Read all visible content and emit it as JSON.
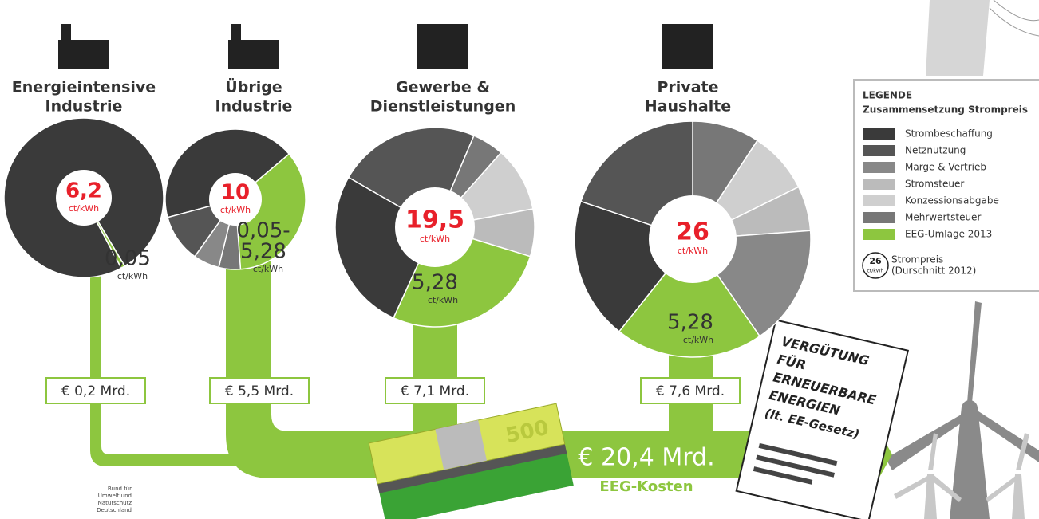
{
  "groups": [
    {
      "title_lines": [
        "Energieintensive",
        "Industrie"
      ],
      "price": "6,2",
      "price_unit": "ct/kWh",
      "eeg_lines": [
        "0,05"
      ],
      "eeg_unit": "ct/kWh",
      "cost": "€ 0,2 Mrd.",
      "segments": [
        {
          "color": "#3a3a3a",
          "value": 6.15
        },
        {
          "color": "#8dc63f",
          "value": 0.05
        }
      ]
    },
    {
      "title_lines": [
        "Übrige",
        "Industrie"
      ],
      "price": "10",
      "price_unit": "ct/kWh",
      "eeg_lines": [
        "0,05-",
        "5,28"
      ],
      "eeg_unit": "ct/kWh",
      "cost": "€ 5,5 Mrd.",
      "segments": [
        {
          "color": "#3a3a3a",
          "value": 4.3
        },
        {
          "color": "#8dc63f",
          "value": 3.5
        },
        {
          "color": "#777777",
          "value": 0.5
        },
        {
          "color": "#888888",
          "value": 0.6
        },
        {
          "color": "#555555",
          "value": 1.1
        }
      ]
    },
    {
      "title_lines": [
        "Gewerbe &",
        "Dienstleistungen"
      ],
      "price": "19,5",
      "price_unit": "ct/kWh",
      "eeg_lines": [
        "5,28"
      ],
      "eeg_unit": "ct/kWh",
      "cost": "€ 7,1 Mrd.",
      "segments": [
        {
          "color": "#555555",
          "value": 4.5
        },
        {
          "color": "#777777",
          "value": 1.0
        },
        {
          "color": "#cfcfcf",
          "value": 2.05
        },
        {
          "color": "#bbbbbb",
          "value": 1.5
        },
        {
          "color": "#8dc63f",
          "value": 5.28
        },
        {
          "color": "#3a3a3a",
          "value": 5.17
        }
      ]
    },
    {
      "title_lines": [
        "Private",
        "Haushalte"
      ],
      "price": "26",
      "price_unit": "ct/kWh",
      "eeg_lines": [
        "5,28"
      ],
      "eeg_unit": "ct/kWh",
      "cost": "€ 7,6 Mrd.",
      "segments": [
        {
          "color": "#777777",
          "value": 2.4
        },
        {
          "color": "#cfcfcf",
          "value": 2.2
        },
        {
          "color": "#bbbbbb",
          "value": 1.6
        },
        {
          "color": "#888888",
          "value": 4.3
        },
        {
          "color": "#8dc63f",
          "value": 5.28
        },
        {
          "color": "#3a3a3a",
          "value": 5.07
        },
        {
          "color": "#555555",
          "value": 5.15
        }
      ]
    }
  ],
  "legend": {
    "title": "LEGENDE",
    "subtitle": "Zusammensetzung Strompreis",
    "items": [
      {
        "label": "Strombeschaffung",
        "color": "#3a3a3a"
      },
      {
        "label": "Netznutzung",
        "color": "#555555"
      },
      {
        "label": "Marge & Vertrieb",
        "color": "#888888"
      },
      {
        "label": "Stromsteuer",
        "color": "#bbbbbb"
      },
      {
        "label": "Konzessionsabgabe",
        "color": "#cfcfcf"
      },
      {
        "label": "Mehrwertsteuer",
        "color": "#777777"
      },
      {
        "label": "EEG-Umlage 2013",
        "color": "#8dc63f"
      }
    ],
    "sample_value": "26",
    "sample_unit": "ct/kWh",
    "sample_lines": [
      "Strompreis",
      "(Durschnitt 2012)"
    ]
  },
  "total": {
    "amount": "€ 20,4 Mrd.",
    "label": "EEG-Kosten"
  },
  "document": {
    "lines": [
      "VERGÜTUNG",
      "FÜR",
      "ERNEUERBARE",
      "ENERGIEN",
      "(lt. EE-Gesetz)"
    ]
  },
  "banknote": "500",
  "credit_lines": [
    "Bund für",
    "Umwelt und",
    "Naturschutz",
    "Deutschland"
  ]
}
